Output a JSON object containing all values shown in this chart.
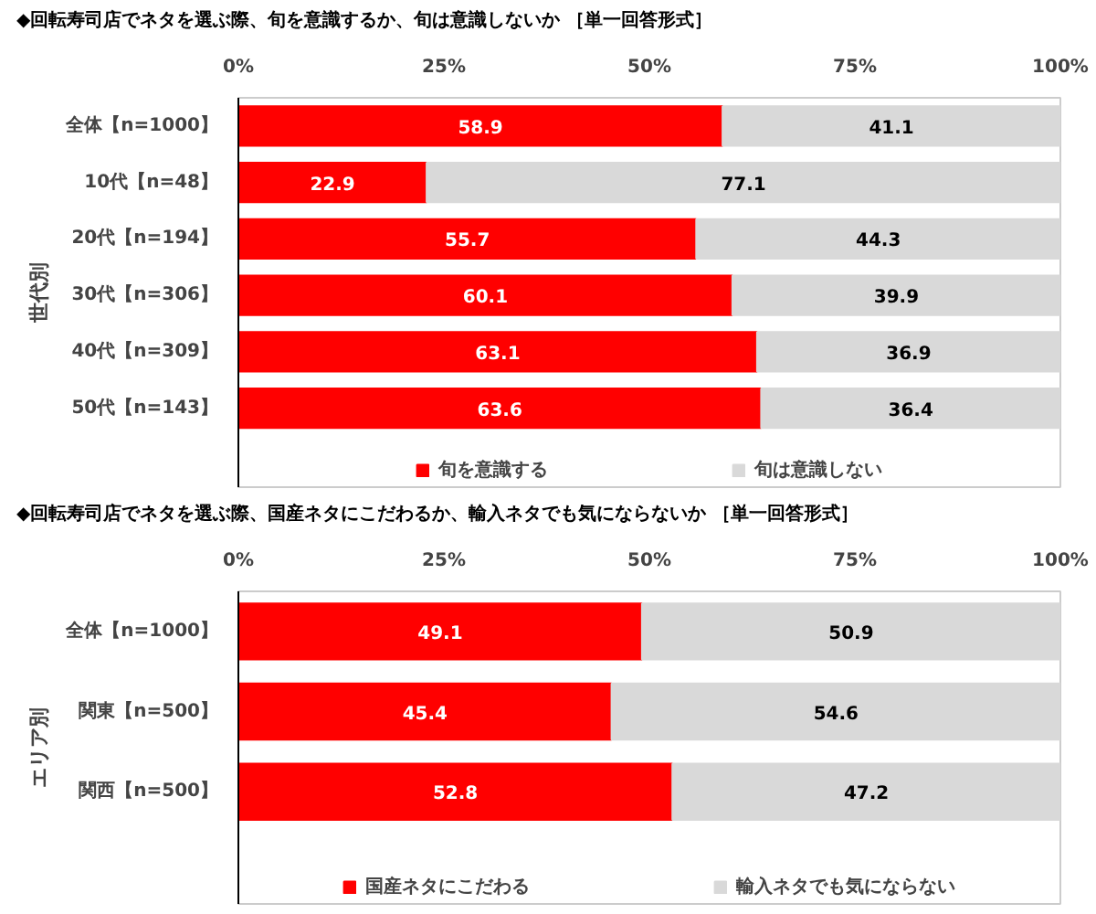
{
  "chart_data": [
    {
      "type": "bar",
      "orientation": "horizontal",
      "stacked": true,
      "title": "◆回転寿司店でネタを選ぶ際、旬を意識するか、旬は意識しないか ［単一回答形式］",
      "categories": [
        "全体【n=1000】",
        "10代【n=48】",
        "20代【n=194】",
        "30代【n=306】",
        "40代【n=309】",
        "50代【n=143】"
      ],
      "series": [
        {
          "name": "旬を意識する",
          "color": "#ff0000",
          "values": [
            58.9,
            22.9,
            55.7,
            60.1,
            63.1,
            63.6
          ]
        },
        {
          "name": "旬は意識しない",
          "color": "#d9d9d9",
          "values": [
            41.1,
            77.1,
            44.3,
            39.9,
            36.9,
            36.4
          ]
        }
      ],
      "xlim": [
        0,
        100
      ],
      "xticks": [
        {
          "value": 0,
          "label": "0%"
        },
        {
          "value": 25,
          "label": "25%"
        },
        {
          "value": 50,
          "label": "50%"
        },
        {
          "value": 75,
          "label": "75%"
        },
        {
          "value": 100,
          "label": "100%"
        }
      ],
      "annotations": [
        "世代別"
      ],
      "data_labels": true,
      "legend": "bottom",
      "grid": false
    },
    {
      "type": "bar",
      "orientation": "horizontal",
      "stacked": true,
      "title": "◆回転寿司店でネタを選ぶ際、国産ネタにこだわるか、輸入ネタでも気にならないか ［単一回答形式］",
      "categories": [
        "全体【n=1000】",
        "関東【n=500】",
        "関西【n=500】"
      ],
      "series": [
        {
          "name": "国産ネタにこだわる",
          "color": "#ff0000",
          "values": [
            49.1,
            45.4,
            52.8
          ]
        },
        {
          "name": "輸入ネタでも気にならない",
          "color": "#d9d9d9",
          "values": [
            50.9,
            54.6,
            47.2
          ]
        }
      ],
      "xlim": [
        0,
        100
      ],
      "xticks": [
        {
          "value": 0,
          "label": "0%"
        },
        {
          "value": 25,
          "label": "25%"
        },
        {
          "value": 50,
          "label": "50%"
        },
        {
          "value": 75,
          "label": "75%"
        },
        {
          "value": 100,
          "label": "100%"
        }
      ],
      "annotations": [
        "エリア別"
      ],
      "data_labels": true,
      "legend": "bottom",
      "grid": false
    }
  ]
}
